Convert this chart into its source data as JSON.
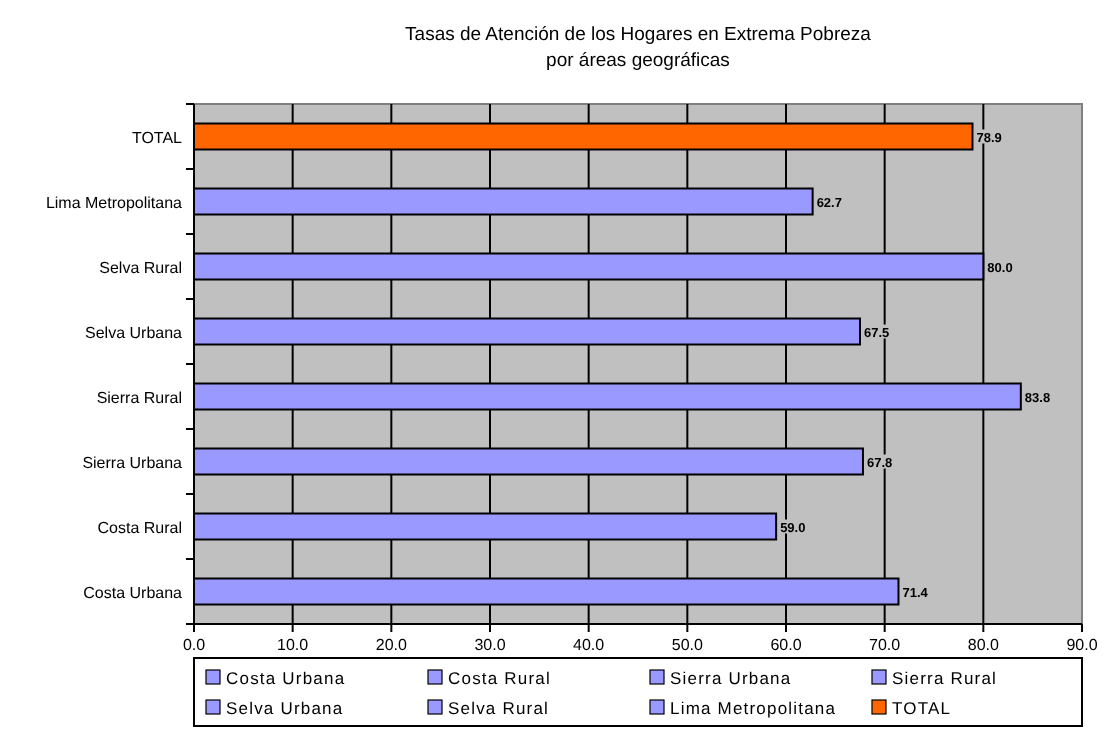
{
  "chart_data": {
    "type": "bar",
    "orientation": "horizontal",
    "title": "Tasas de Atención de los Hogares en Extrema Pobreza\npor áreas geográficas",
    "categories": [
      "TOTAL",
      "Lima Metropolitana",
      "Selva Rural",
      "Selva Urbana",
      "Sierra Rural",
      "Sierra Urbana",
      "Costa Rural",
      "Costa Urbana"
    ],
    "series": [
      {
        "name": "Costa Urbana",
        "color": "#9999ff",
        "values": [
          null,
          null,
          null,
          null,
          null,
          null,
          null,
          71.4
        ],
        "value_labels": [
          null,
          null,
          null,
          null,
          null,
          null,
          null,
          "71.4"
        ]
      },
      {
        "name": "Costa Rural",
        "color": "#9999ff",
        "values": [
          null,
          null,
          null,
          null,
          null,
          null,
          59.0,
          null
        ],
        "value_labels": [
          null,
          null,
          null,
          null,
          null,
          null,
          "59.0",
          null
        ]
      },
      {
        "name": "Sierra Urbana",
        "color": "#9999ff",
        "values": [
          null,
          null,
          null,
          null,
          null,
          67.8,
          null,
          null
        ],
        "value_labels": [
          null,
          null,
          null,
          null,
          null,
          "67.8",
          null,
          null
        ]
      },
      {
        "name": "Sierra Rural",
        "color": "#9999ff",
        "values": [
          null,
          null,
          null,
          null,
          83.8,
          null,
          null,
          null
        ],
        "value_labels": [
          null,
          null,
          null,
          null,
          "83.8",
          null,
          null,
          null
        ]
      },
      {
        "name": "Selva Urbana",
        "color": "#9999ff",
        "values": [
          null,
          null,
          null,
          67.5,
          null,
          null,
          null,
          null
        ],
        "value_labels": [
          null,
          null,
          null,
          "67.5",
          null,
          null,
          null,
          null
        ]
      },
      {
        "name": "Selva Rural",
        "color": "#9999ff",
        "values": [
          null,
          null,
          80.0,
          null,
          null,
          null,
          null,
          null
        ],
        "value_labels": [
          null,
          null,
          "80.0",
          null,
          null,
          null,
          null,
          null
        ]
      },
      {
        "name": "Lima Metropolitana",
        "color": "#9999ff",
        "values": [
          null,
          62.7,
          null,
          null,
          null,
          null,
          null,
          null
        ],
        "value_labels": [
          null,
          "62.7",
          null,
          null,
          null,
          null,
          null,
          null
        ]
      },
      {
        "name": "TOTAL",
        "color": "#ff6600",
        "values": [
          78.9,
          null,
          null,
          null,
          null,
          null,
          null,
          null
        ],
        "value_labels": [
          "78.9",
          null,
          null,
          null,
          null,
          null,
          null,
          null
        ]
      }
    ],
    "xlim": [
      0,
      90
    ],
    "xticks": [
      {
        "value": 0,
        "label": "0.0"
      },
      {
        "value": 10,
        "label": "10.0"
      },
      {
        "value": 20,
        "label": "20.0"
      },
      {
        "value": 30,
        "label": "30.0"
      },
      {
        "value": 40,
        "label": "40.0"
      },
      {
        "value": 50,
        "label": "50.0"
      },
      {
        "value": 60,
        "label": "60.0"
      },
      {
        "value": 70,
        "label": "70.0"
      },
      {
        "value": 80,
        "label": "80.0"
      },
      {
        "value": 90,
        "label": "90.0"
      }
    ],
    "grid": "x",
    "legend": "bottom"
  }
}
